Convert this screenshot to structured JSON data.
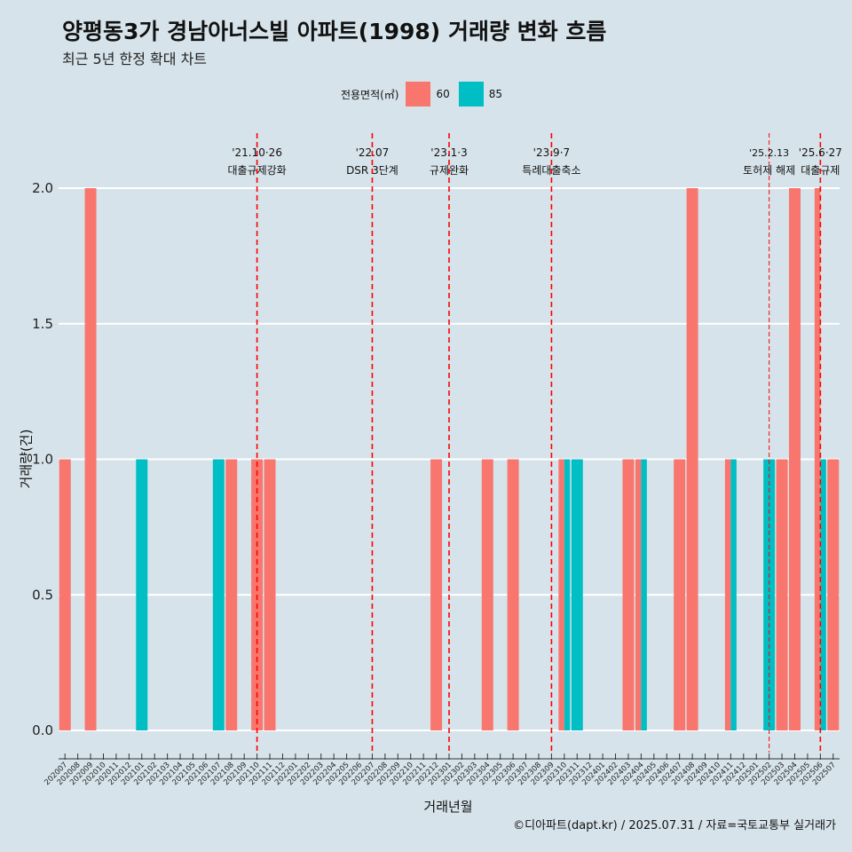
{
  "title": "양평동3가 경남아너스빌 아파트(1998) 거래량 변화 흐름",
  "subtitle": "최근 5년 한정 확대 차트",
  "caption": "©디아파트(dapt.kr) / 2025.07.31 / 자료=국토교통부 실거래가",
  "legend": {
    "title": "전용면적(㎡)",
    "items": [
      {
        "label": "60",
        "color": "#f8766d"
      },
      {
        "label": "85",
        "color": "#00bfc4"
      }
    ]
  },
  "chart_data": {
    "type": "bar",
    "xlabel": "거래년월",
    "ylabel": "거래량(건)",
    "ylim": [
      0,
      2
    ],
    "yticks": [
      "0.0",
      "0.5",
      "1.0",
      "1.5",
      "2.0"
    ],
    "grid": true,
    "legend_position": "top",
    "categories": [
      "202007",
      "202008",
      "202009",
      "202010",
      "202011",
      "202012",
      "202101",
      "202102",
      "202103",
      "202104",
      "202105",
      "202106",
      "202107",
      "202108",
      "202109",
      "202110",
      "202111",
      "202112",
      "202201",
      "202202",
      "202203",
      "202204",
      "202205",
      "202206",
      "202207",
      "202208",
      "202209",
      "202210",
      "202211",
      "202212",
      "202301",
      "202302",
      "202303",
      "202304",
      "202305",
      "202306",
      "202307",
      "202308",
      "202309",
      "202310",
      "202311",
      "202312",
      "202401",
      "202402",
      "202403",
      "202404",
      "202405",
      "202406",
      "202407",
      "202408",
      "202409",
      "202410",
      "202411",
      "202412",
      "202501",
      "202502",
      "202503",
      "202504",
      "202505",
      "202506",
      "202507"
    ],
    "bars": [
      {
        "month": "202007",
        "area": "60",
        "value": 1,
        "color": "#f8766d"
      },
      {
        "month": "202009",
        "area": "60",
        "value": 2,
        "color": "#f8766d"
      },
      {
        "month": "202101",
        "area": "85",
        "value": 1,
        "color": "#00bfc4"
      },
      {
        "month": "202107",
        "area": "85",
        "value": 1,
        "color": "#00bfc4"
      },
      {
        "month": "202108",
        "area": "60",
        "value": 1,
        "color": "#f8766d"
      },
      {
        "month": "202110",
        "area": "60",
        "value": 1,
        "color": "#f8766d"
      },
      {
        "month": "202111",
        "area": "60",
        "value": 1,
        "color": "#f8766d"
      },
      {
        "month": "202212",
        "area": "60",
        "value": 1,
        "color": "#f8766d"
      },
      {
        "month": "202304",
        "area": "60",
        "value": 1,
        "color": "#f8766d"
      },
      {
        "month": "202306",
        "area": "60",
        "value": 1,
        "color": "#f8766d"
      },
      {
        "month": "202310",
        "area": "60",
        "value": 1,
        "color": "#f8766d",
        "dodge": 0
      },
      {
        "month": "202310",
        "area": "85",
        "value": 1,
        "color": "#00bfc4",
        "dodge": 1
      },
      {
        "month": "202311",
        "area": "85",
        "value": 1,
        "color": "#00bfc4"
      },
      {
        "month": "202403",
        "area": "60",
        "value": 1,
        "color": "#f8766d"
      },
      {
        "month": "202404",
        "area": "60",
        "value": 1,
        "color": "#f8766d",
        "dodge": 0
      },
      {
        "month": "202404",
        "area": "85",
        "value": 1,
        "color": "#00bfc4",
        "dodge": 1
      },
      {
        "month": "202407",
        "area": "60",
        "value": 1,
        "color": "#f8766d"
      },
      {
        "month": "202408",
        "area": "60",
        "value": 2,
        "color": "#f8766d"
      },
      {
        "month": "202411",
        "area": "60",
        "value": 1,
        "color": "#f8766d",
        "dodge": 0
      },
      {
        "month": "202411",
        "area": "85",
        "value": 1,
        "color": "#00bfc4",
        "dodge": 1
      },
      {
        "month": "202502",
        "area": "85",
        "value": 1,
        "color": "#00bfc4"
      },
      {
        "month": "202503",
        "area": "60",
        "value": 1,
        "color": "#f8766d"
      },
      {
        "month": "202504",
        "area": "60",
        "value": 2,
        "color": "#f8766d"
      },
      {
        "month": "202506",
        "area": "60",
        "value": 2,
        "color": "#f8766d",
        "dodge": 0
      },
      {
        "month": "202506",
        "area": "85",
        "value": 1,
        "color": "#00bfc4",
        "dodge": 1
      },
      {
        "month": "202507",
        "area": "60",
        "value": 1,
        "color": "#f8766d"
      }
    ],
    "annotations": [
      {
        "month": "202110",
        "offset": 0,
        "date": "'21.10·26",
        "label": "대출규제강화",
        "style": "dashed"
      },
      {
        "month": "202207",
        "offset": 0,
        "date": "'22.07",
        "label": "DSR 3단계",
        "style": "dashed"
      },
      {
        "month": "202301",
        "offset": 0,
        "date": "'23.1·3",
        "label": "규제완화",
        "style": "dashed"
      },
      {
        "month": "202309",
        "offset": 0,
        "date": "'23.9·7",
        "label": "특례대출축소",
        "style": "dashed"
      },
      {
        "month": "202502",
        "offset": 0,
        "date": "'25.2.13",
        "label": "토허제 해제",
        "style": "thin"
      },
      {
        "month": "202506",
        "offset": 0,
        "date": "'25.6·27",
        "label": "대출규제",
        "style": "dashed"
      }
    ]
  }
}
